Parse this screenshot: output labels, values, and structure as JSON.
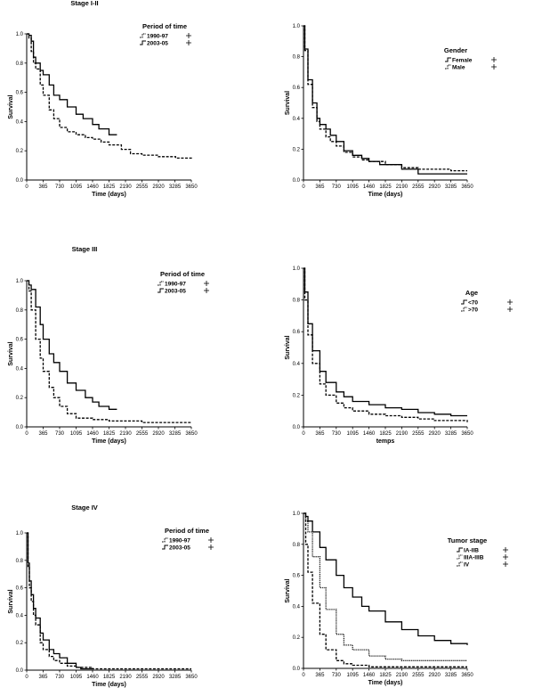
{
  "chart_data": [
    {
      "type": "line",
      "title": "Stage I-II",
      "xlabel": "Time (days)",
      "ylabel": "Survival",
      "xticks": [
        "0",
        "365",
        "730",
        "1095",
        "1460",
        "1825",
        "2190",
        "2555",
        "2920",
        "3285",
        "3650"
      ],
      "yticks": [
        "0.0",
        "0.2",
        "0.4",
        "0.6",
        "0.8",
        "1.0"
      ],
      "xlim": [
        0,
        3650
      ],
      "ylim": [
        0,
        1
      ],
      "legend_title": "Period of time",
      "series": [
        {
          "name": "1990-97",
          "style": "dashed",
          "x": [
            0,
            50,
            100,
            150,
            200,
            300,
            365,
            500,
            600,
            730,
            900,
            1095,
            1300,
            1460,
            1650,
            1825,
            2100,
            2300,
            2555,
            2920,
            3300,
            3650
          ],
          "y": [
            1,
            0.97,
            0.88,
            0.8,
            0.76,
            0.65,
            0.58,
            0.48,
            0.42,
            0.36,
            0.33,
            0.31,
            0.29,
            0.28,
            0.26,
            0.24,
            0.21,
            0.18,
            0.17,
            0.16,
            0.15,
            0.14
          ]
        },
        {
          "name": "2003-05",
          "style": "solid",
          "x": [
            0,
            50,
            100,
            150,
            200,
            300,
            365,
            500,
            600,
            730,
            900,
            1095,
            1250,
            1460,
            1600,
            1825,
            2000
          ],
          "y": [
            1,
            0.99,
            0.95,
            0.84,
            0.8,
            0.75,
            0.72,
            0.65,
            0.58,
            0.55,
            0.5,
            0.45,
            0.42,
            0.38,
            0.35,
            0.31,
            0.31
          ]
        }
      ]
    },
    {
      "type": "line",
      "title": "",
      "xlabel": "Time (days)",
      "ylabel": "Survival",
      "xticks": [
        "0",
        "365",
        "730",
        "1095",
        "1460",
        "1825",
        "2190",
        "2555",
        "2920",
        "3285",
        "3650"
      ],
      "yticks": [
        "0.0",
        "0.2",
        "0.4",
        "0.6",
        "0.8",
        "1.0"
      ],
      "xlim": [
        0,
        3650
      ],
      "ylim": [
        0,
        1
      ],
      "legend_title": "Gender",
      "series": [
        {
          "name": "Female",
          "style": "solid",
          "x": [
            0,
            30,
            100,
            200,
            300,
            365,
            500,
            600,
            730,
            900,
            1095,
            1300,
            1460,
            1700,
            1825,
            2190,
            2400,
            2555,
            3000,
            3650
          ],
          "y": [
            1,
            0.85,
            0.65,
            0.5,
            0.4,
            0.36,
            0.33,
            0.29,
            0.25,
            0.19,
            0.16,
            0.14,
            0.12,
            0.1,
            0.1,
            0.07,
            0.07,
            0.04,
            0.04,
            0.04
          ]
        },
        {
          "name": "Male",
          "style": "dashed",
          "x": [
            0,
            30,
            100,
            200,
            300,
            365,
            500,
            600,
            730,
            900,
            1095,
            1300,
            1460,
            1825,
            2190,
            2555,
            2920,
            3285,
            3650
          ],
          "y": [
            1,
            0.84,
            0.62,
            0.47,
            0.38,
            0.33,
            0.28,
            0.25,
            0.22,
            0.18,
            0.15,
            0.13,
            0.12,
            0.1,
            0.08,
            0.07,
            0.07,
            0.06,
            0.06
          ]
        }
      ]
    },
    {
      "type": "line",
      "title": "Stage III",
      "xlabel": "Time (days)",
      "ylabel": "Survival",
      "xticks": [
        "0",
        "365",
        "730",
        "1095",
        "1460",
        "1825",
        "2190",
        "2555",
        "2920",
        "3285",
        "3650"
      ],
      "yticks": [
        "0.0",
        "0.2",
        "0.4",
        "0.6",
        "0.8",
        "1.0"
      ],
      "xlim": [
        0,
        3650
      ],
      "ylim": [
        0,
        1
      ],
      "legend_title": "Period of time",
      "series": [
        {
          "name": "1990-97",
          "style": "dashed",
          "x": [
            0,
            50,
            100,
            200,
            300,
            365,
            500,
            600,
            730,
            900,
            1095,
            1460,
            1825,
            2190,
            2555,
            2920,
            3285,
            3650
          ],
          "y": [
            1,
            0.93,
            0.8,
            0.6,
            0.47,
            0.38,
            0.27,
            0.2,
            0.14,
            0.09,
            0.06,
            0.05,
            0.04,
            0.04,
            0.03,
            0.03,
            0.03,
            0.03
          ]
        },
        {
          "name": "2003-05",
          "style": "solid",
          "x": [
            0,
            50,
            100,
            200,
            300,
            365,
            500,
            600,
            730,
            900,
            1095,
            1300,
            1460,
            1600,
            1825,
            2000
          ],
          "y": [
            1,
            0.97,
            0.94,
            0.82,
            0.7,
            0.6,
            0.5,
            0.44,
            0.38,
            0.3,
            0.25,
            0.2,
            0.17,
            0.14,
            0.12,
            0.12
          ]
        }
      ]
    },
    {
      "type": "line",
      "title": "",
      "xlabel": "temps",
      "ylabel": "Survival",
      "xticks": [
        "0",
        "365",
        "730",
        "1095",
        "1460",
        "1825",
        "2190",
        "2555",
        "2920",
        "3285",
        "3650"
      ],
      "yticks": [
        "0.0",
        "0.2",
        "0.4",
        "0.6",
        "0.8",
        "1.0"
      ],
      "xlim": [
        0,
        3650
      ],
      "ylim": [
        0,
        1
      ],
      "legend_title": "Age",
      "series": [
        {
          "name": "<70",
          "style": "solid",
          "x": [
            0,
            30,
            100,
            200,
            365,
            500,
            730,
            900,
            1095,
            1460,
            1825,
            2190,
            2555,
            2920,
            3285,
            3650
          ],
          "y": [
            1,
            0.85,
            0.65,
            0.48,
            0.35,
            0.28,
            0.22,
            0.19,
            0.16,
            0.14,
            0.12,
            0.11,
            0.09,
            0.08,
            0.07,
            0.07
          ]
        },
        {
          "name": ">70",
          "style": "dashed",
          "x": [
            0,
            30,
            100,
            200,
            365,
            500,
            730,
            900,
            1095,
            1460,
            1825,
            2190,
            2555,
            2920,
            3285,
            3650
          ],
          "y": [
            1,
            0.8,
            0.58,
            0.4,
            0.27,
            0.2,
            0.15,
            0.12,
            0.1,
            0.08,
            0.07,
            0.06,
            0.05,
            0.04,
            0.04,
            0.03
          ]
        }
      ]
    },
    {
      "type": "line",
      "title": "Stage IV",
      "xlabel": "Time (days)",
      "ylabel": "Survival",
      "xticks": [
        "0",
        "365",
        "730",
        "1095",
        "1460",
        "1825",
        "2190",
        "2555",
        "2920",
        "3285",
        "3650"
      ],
      "yticks": [
        "0.0",
        "0.2",
        "0.4",
        "0.6",
        "0.8",
        "1.0"
      ],
      "xlim": [
        0,
        3650
      ],
      "ylim": [
        0,
        1
      ],
      "legend_title": "Period of time",
      "series": [
        {
          "name": "1990-97",
          "style": "dashed",
          "x": [
            0,
            30,
            60,
            100,
            150,
            200,
            300,
            365,
            500,
            600,
            730,
            900,
            1095,
            1460,
            1825,
            2555,
            3650
          ],
          "y": [
            1,
            0.75,
            0.6,
            0.5,
            0.4,
            0.33,
            0.2,
            0.15,
            0.1,
            0.07,
            0.05,
            0.03,
            0.02,
            0.01,
            0.01,
            0.01,
            0.01
          ]
        },
        {
          "name": "2003-05",
          "style": "solid",
          "x": [
            0,
            30,
            60,
            100,
            150,
            200,
            300,
            365,
            500,
            600,
            730,
            900,
            1095,
            1200,
            1460
          ],
          "y": [
            1,
            0.78,
            0.65,
            0.55,
            0.45,
            0.38,
            0.27,
            0.22,
            0.15,
            0.12,
            0.09,
            0.05,
            0.02,
            0.01,
            0.01
          ]
        }
      ]
    },
    {
      "type": "line",
      "title": "",
      "xlabel": "Time (days)",
      "ylabel": "Survival",
      "xticks": [
        "0",
        "365",
        "730",
        "1095",
        "1460",
        "1825",
        "2190",
        "2555",
        "2920",
        "3285",
        "3650"
      ],
      "yticks": [
        "0.0",
        "0.2",
        "0.4",
        "0.6",
        "0.8",
        "1.0"
      ],
      "xlim": [
        0,
        3650
      ],
      "ylim": [
        0,
        1
      ],
      "legend_title": "Tumor stage",
      "series": [
        {
          "name": "IA-IIB",
          "style": "solid",
          "x": [
            0,
            50,
            100,
            200,
            365,
            500,
            730,
            900,
            1095,
            1300,
            1460,
            1825,
            2190,
            2555,
            2920,
            3285,
            3650
          ],
          "y": [
            1,
            0.98,
            0.95,
            0.88,
            0.78,
            0.7,
            0.6,
            0.52,
            0.46,
            0.4,
            0.37,
            0.3,
            0.25,
            0.21,
            0.18,
            0.16,
            0.15
          ]
        },
        {
          "name": "IIIA-IIIB",
          "style": "dotted",
          "x": [
            0,
            50,
            100,
            200,
            365,
            500,
            730,
            900,
            1095,
            1460,
            1825,
            2190,
            2555,
            3650
          ],
          "y": [
            1,
            0.95,
            0.88,
            0.72,
            0.52,
            0.38,
            0.22,
            0.15,
            0.12,
            0.08,
            0.06,
            0.05,
            0.05,
            0.05
          ]
        },
        {
          "name": "IV",
          "style": "dashed",
          "x": [
            0,
            50,
            100,
            200,
            365,
            500,
            730,
            900,
            1095,
            1460,
            1825,
            2555,
            3650
          ],
          "y": [
            1,
            0.8,
            0.62,
            0.42,
            0.22,
            0.12,
            0.05,
            0.03,
            0.02,
            0.01,
            0.01,
            0.01,
            0.01
          ]
        }
      ]
    }
  ]
}
